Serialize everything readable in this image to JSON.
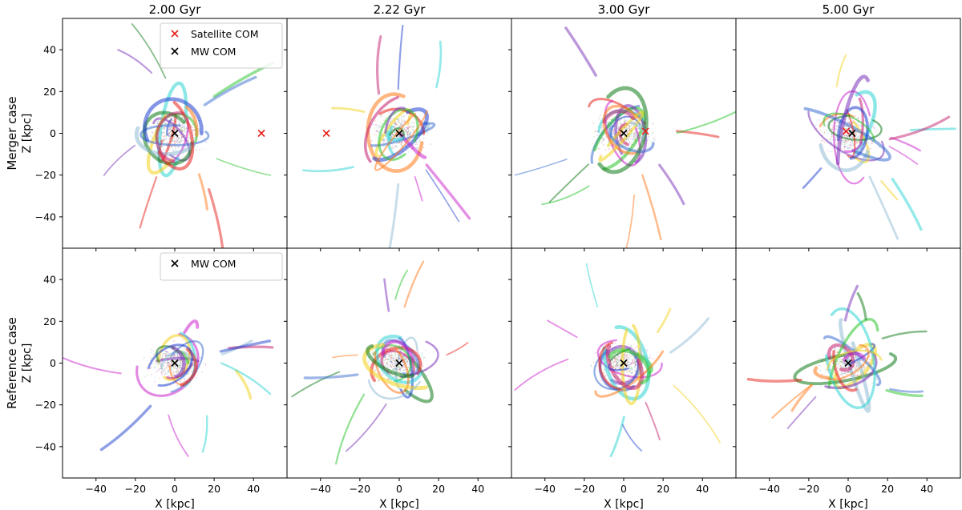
{
  "chart_data": {
    "type": "scatter",
    "layout": {
      "rows": 2,
      "cols": 4,
      "shared_axes": true
    },
    "column_titles": [
      "2.00 Gyr",
      "2.22 Gyr",
      "3.00 Gyr",
      "5.00 Gyr"
    ],
    "row_labels": [
      "Merger case",
      "Reference case"
    ],
    "xlabel": "X [kpc]",
    "ylabel": "Z [kpc]",
    "xlim": [
      -57,
      57
    ],
    "ylim": [
      -55,
      55
    ],
    "xticks": [
      -40,
      -20,
      0,
      20,
      40
    ],
    "yticks": [
      -40,
      -20,
      0,
      20,
      40
    ],
    "grid": false,
    "legends": [
      {
        "panel": [
          0,
          0
        ],
        "placement": "top-right",
        "entries": [
          {
            "label": "Satellite COM",
            "color": "#e8211c",
            "marker": "x"
          },
          {
            "label": "MW COM",
            "color": "#000000",
            "marker": "x"
          }
        ]
      },
      {
        "panel": [
          1,
          0
        ],
        "placement": "top-right",
        "entries": [
          {
            "label": "MW COM",
            "color": "#000000",
            "marker": "x"
          }
        ]
      }
    ],
    "com_markers": [
      {
        "row": 0,
        "col": 0,
        "mw": [
          0,
          0
        ],
        "satellite": [
          44,
          0
        ]
      },
      {
        "row": 0,
        "col": 1,
        "mw": [
          0,
          0
        ],
        "satellite": [
          -37,
          0
        ]
      },
      {
        "row": 0,
        "col": 2,
        "mw": [
          0,
          0
        ],
        "satellite": [
          11,
          1
        ]
      },
      {
        "row": 0,
        "col": 3,
        "mw": [
          2,
          0
        ],
        "satellite": [
          -1,
          1
        ]
      },
      {
        "row": 1,
        "col": 0,
        "mw": [
          0,
          0
        ]
      },
      {
        "row": 1,
        "col": 1,
        "mw": [
          0,
          0
        ]
      },
      {
        "row": 1,
        "col": 2,
        "mw": [
          0,
          0
        ]
      },
      {
        "row": 1,
        "col": 3,
        "mw": [
          0,
          0
        ]
      }
    ],
    "stream_colors": [
      "#e8211c",
      "#1f3fd0",
      "#28c42a",
      "#cc22cc",
      "#7a2fb8",
      "#2ed3d3",
      "#ff7a1a",
      "#f2d21a",
      "#0d7a15",
      "#8fbcd6",
      "#3d6fd1",
      "#c41f6f"
    ]
  }
}
